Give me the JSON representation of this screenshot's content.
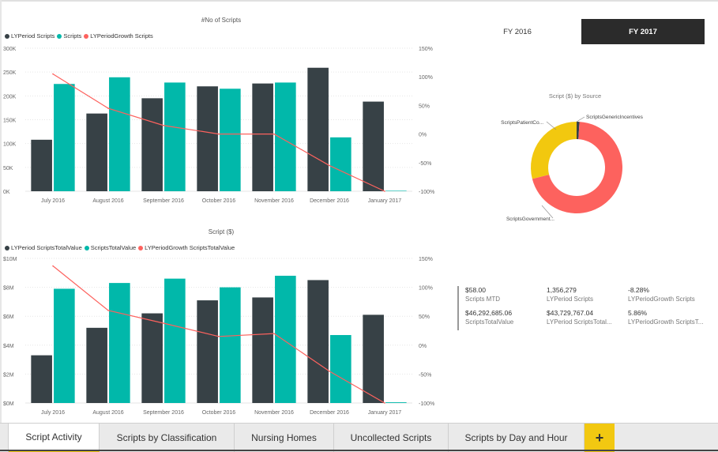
{
  "fy_buttons": {
    "fy2016": "FY 2016",
    "fy2017": "FY 2017",
    "selected": "FY 2017"
  },
  "colors": {
    "dark": "#374146",
    "teal": "#01b8aa",
    "red": "#fd625e",
    "yellow": "#f2c80f",
    "accent": "#f2c811"
  },
  "chart_data": [
    {
      "type": "bar",
      "title": "#No of Scripts",
      "categories": [
        "July 2016",
        "August 2016",
        "September 2016",
        "October 2016",
        "November 2016",
        "December 2016",
        "January 2017"
      ],
      "series": [
        {
          "name": "LYPeriod Scripts",
          "values": [
            108000,
            163000,
            195000,
            220000,
            226000,
            259000,
            188000
          ]
        },
        {
          "name": "Scripts",
          "values": [
            225000,
            239000,
            228000,
            215000,
            228000,
            113000,
            1000
          ]
        },
        {
          "name": "LYPeriodGrowth Scripts",
          "axis": "right",
          "values": [
            105,
            45,
            15,
            0,
            0,
            -55,
            -100
          ]
        }
      ],
      "ylim": [
        0,
        300000
      ],
      "yticks": [
        "0K",
        "50K",
        "100K",
        "150K",
        "200K",
        "250K",
        "300K"
      ],
      "y2lim": [
        -100,
        150
      ],
      "y2ticks": [
        "-100%",
        "-50%",
        "0%",
        "50%",
        "100%",
        "150%"
      ]
    },
    {
      "type": "bar",
      "title": "Script ($)",
      "categories": [
        "July 2016",
        "August 2016",
        "September 2016",
        "October 2016",
        "November 2016",
        "December 2016",
        "January 2017"
      ],
      "series": [
        {
          "name": "LYPeriod ScriptsTotalValue",
          "values": [
            3300000,
            5200000,
            6200000,
            7100000,
            7300000,
            8500000,
            6100000
          ]
        },
        {
          "name": "ScriptsTotalValue",
          "values": [
            7900000,
            8300000,
            8600000,
            8000000,
            8800000,
            4700000,
            50000
          ]
        },
        {
          "name": "LYPeriodGrowth ScriptsTotalValue",
          "axis": "right",
          "values": [
            137,
            60,
            38,
            15,
            20,
            -45,
            -100
          ]
        }
      ],
      "ylim": [
        0,
        10000000
      ],
      "yticks": [
        "$0M",
        "$2M",
        "$4M",
        "$6M",
        "$8M",
        "$10M"
      ],
      "y2lim": [
        -100,
        150
      ],
      "y2ticks": [
        "-100%",
        "-50%",
        "0%",
        "50%",
        "100%",
        "150%"
      ]
    },
    {
      "type": "pie",
      "title": "Script ($) by Source",
      "categories": [
        "ScriptsGenericIncentives",
        "ScriptsGovernment...",
        "ScriptsPatientCo..."
      ],
      "values": [
        1,
        70,
        29
      ]
    }
  ],
  "kpis": [
    {
      "value": "$58.00",
      "label": "Scripts MTD"
    },
    {
      "value": "1,356,279",
      "label": "LYPeriod Scripts"
    },
    {
      "value": "-8.28%",
      "label": "LYPeriodGrowth Scripts"
    },
    {
      "value": "$46,292,685.06",
      "label": "ScriptsTotalValue"
    },
    {
      "value": "$43,729,767.04",
      "label": "LYPeriod ScriptsTotal..."
    },
    {
      "value": "5.86%",
      "label": "LYPeriodGrowth ScriptsT..."
    }
  ],
  "tabs": [
    "Script Activity",
    "Scripts by Classification",
    "Nursing Homes",
    "Uncollected Scripts",
    "Scripts by Day and Hour"
  ],
  "active_tab": "Script Activity",
  "add_tab": "+"
}
